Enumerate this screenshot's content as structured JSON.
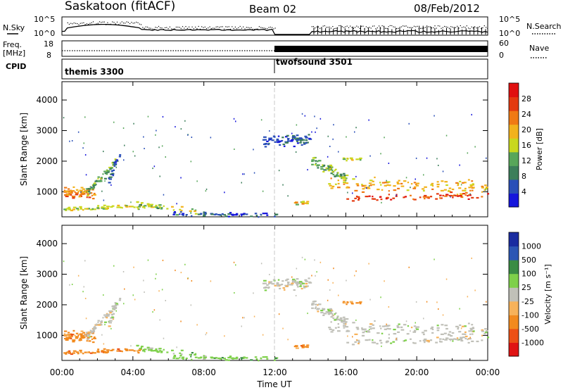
{
  "header": {
    "title": "Saskatoon (fitACF)",
    "beam": "Beam 02",
    "date": "08/Feb/2012"
  },
  "top_panels": {
    "nsky_label": "N.Sky",
    "nsky_ticks": [
      "10^5",
      "10^0"
    ],
    "nsearch_label": "N.Search",
    "nsearch_ticks": [
      "10^5",
      "10^0"
    ],
    "freq_label_1": "Freq.",
    "freq_label_2": "[MHz]",
    "freq_ticks": [
      "18",
      "8"
    ],
    "nave_label": "Nave",
    "nave_ticks": [
      "60",
      "0"
    ],
    "cpid_label": "CPID",
    "programs": [
      {
        "name": "themis 3300",
        "start_hour": 0
      },
      {
        "name": "twofsound 3501",
        "start_hour": 12
      }
    ]
  },
  "colors": {
    "power_scale": [
      "#1616dc",
      "#2a4fb8",
      "#3c7e5a",
      "#58a65a",
      "#c8d81e",
      "#f2b21c",
      "#f07a14",
      "#e43a10",
      "#e01010"
    ],
    "velocity_scale": [
      "#e01414",
      "#ec5016",
      "#f28a1e",
      "#f7b25a",
      "#c0c0b8",
      "#7ed04a",
      "#3a8c44",
      "#2c56b4",
      "#1a2ca0"
    ]
  },
  "chart_data": [
    {
      "type": "heatmap",
      "panel": "power",
      "xlabel": "Time UT",
      "ylabel": "Slant Range [km]",
      "x_ticks": [
        "00:00",
        "04:00",
        "08:00",
        "12:00",
        "16:00",
        "20:00",
        "00:00"
      ],
      "xlim_hours": [
        0,
        24
      ],
      "y_ticks": [
        1000,
        2000,
        3000,
        4000
      ],
      "ylim": [
        180,
        4600
      ],
      "colorbar_label": "Power [dB]",
      "colorbar_ticks": [
        "28",
        "24",
        "20",
        "16",
        "12",
        "8",
        "4"
      ],
      "colorbar_range": [
        0,
        30
      ]
    },
    {
      "type": "heatmap",
      "panel": "velocity",
      "xlabel": "Time UT",
      "ylabel": "Slant Range [km]",
      "x_ticks": [
        "00:00",
        "04:00",
        "08:00",
        "12:00",
        "16:00",
        "20:00",
        "00:00"
      ],
      "xlim_hours": [
        0,
        24
      ],
      "y_ticks": [
        1000,
        2000,
        3000,
        4000
      ],
      "ylim": [
        180,
        4600
      ],
      "colorbar_label": "Velocity [m s⁻¹]",
      "colorbar_ticks": [
        "1000",
        "500",
        "100",
        "25",
        "-25",
        "-100",
        "-500",
        "-1000"
      ]
    }
  ]
}
